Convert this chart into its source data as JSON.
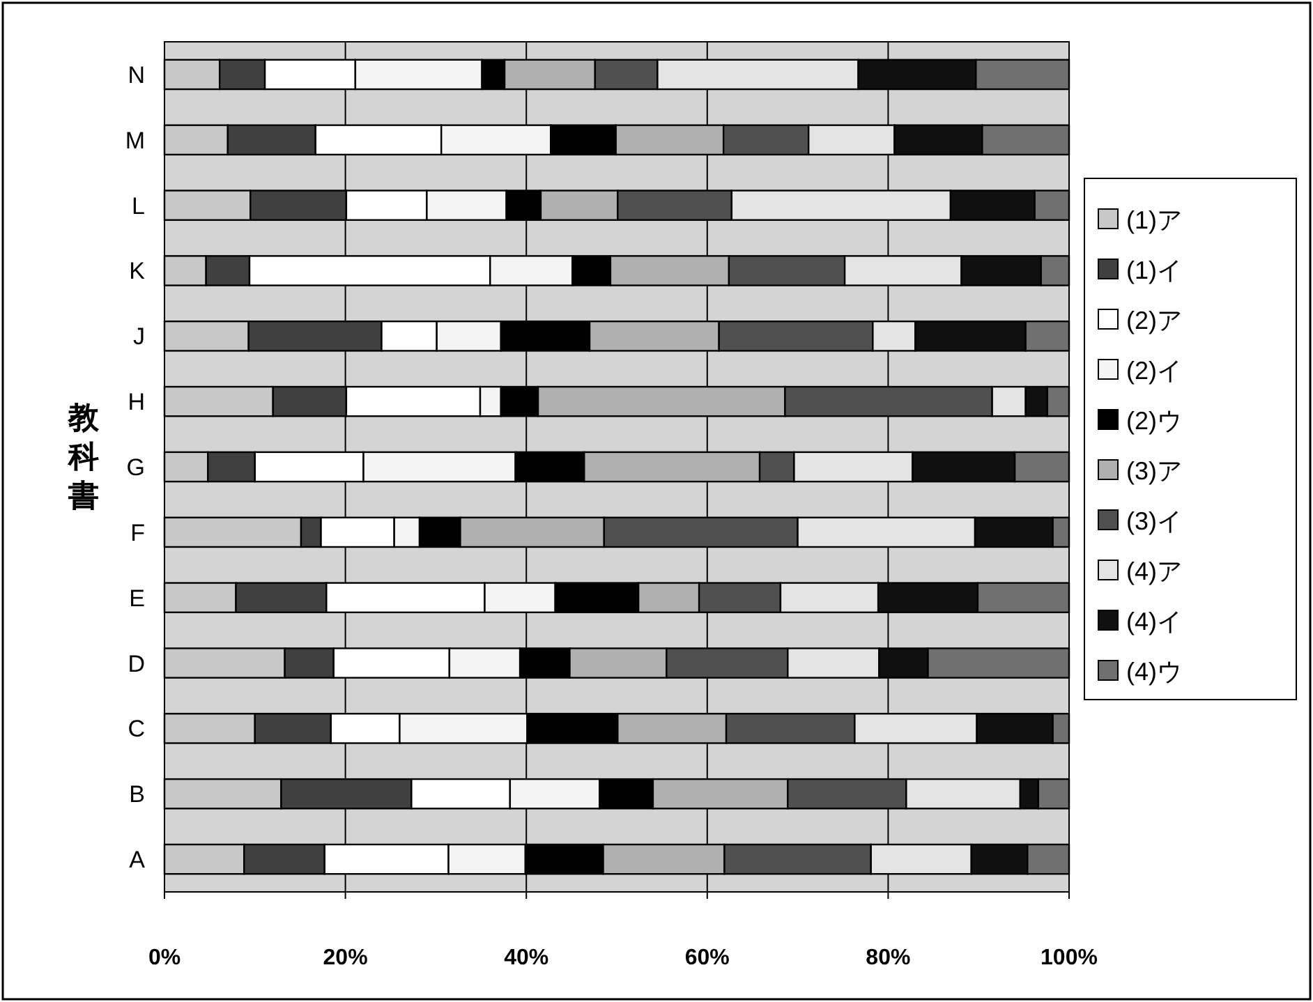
{
  "chart_data": {
    "type": "bar",
    "orientation": "horizontal",
    "stacked": true,
    "ylabel": "教科書",
    "categories": [
      "N",
      "M",
      "L",
      "K",
      "J",
      "H",
      "G",
      "F",
      "E",
      "D",
      "C",
      "B",
      "A"
    ],
    "xlim": [
      0,
      100
    ],
    "xticks": [
      {
        "value": 0,
        "label": "0%"
      },
      {
        "value": 20,
        "label": "20%"
      },
      {
        "value": 40,
        "label": "40%"
      },
      {
        "value": 60,
        "label": "60%"
      },
      {
        "value": 80,
        "label": "80%"
      },
      {
        "value": 100,
        "label": "100%"
      }
    ],
    "grid": "x",
    "legend": "right",
    "series": [
      {
        "name": "(1)ア",
        "color": "#c8c8c8",
        "values": [
          6.1,
          7.0,
          9.5,
          4.6,
          9.3,
          12.0,
          4.8,
          15.1,
          7.9,
          13.3,
          10.0,
          12.9,
          8.8
        ]
      },
      {
        "name": "(1)イ",
        "color": "#404040",
        "values": [
          5.0,
          9.7,
          10.6,
          4.8,
          14.7,
          8.1,
          5.2,
          2.2,
          10.0,
          5.4,
          8.4,
          14.4,
          8.9
        ]
      },
      {
        "name": "(2)ア",
        "color": "#ffffff",
        "values": [
          10.0,
          13.9,
          8.9,
          26.6,
          6.1,
          14.8,
          12.0,
          8.1,
          17.5,
          12.8,
          7.6,
          10.9,
          13.7
        ]
      },
      {
        "name": "(2)イ",
        "color": "#f4f4f4",
        "values": [
          14.0,
          12.1,
          8.8,
          9.1,
          7.1,
          2.3,
          16.8,
          2.8,
          7.8,
          7.8,
          14.1,
          9.9,
          8.5
        ]
      },
      {
        "name": "(2)ウ",
        "color": "#000000",
        "values": [
          2.5,
          7.2,
          3.8,
          4.2,
          9.8,
          4.1,
          7.6,
          4.5,
          9.2,
          5.5,
          10.0,
          5.9,
          8.6
        ]
      },
      {
        "name": "(3)ア",
        "color": "#b0b0b0",
        "values": [
          10.0,
          11.9,
          8.5,
          13.1,
          14.3,
          27.3,
          19.4,
          15.9,
          6.7,
          10.7,
          12.0,
          14.9,
          13.4
        ]
      },
      {
        "name": "(3)イ",
        "color": "#505050",
        "values": [
          6.9,
          9.4,
          12.6,
          12.8,
          17.0,
          22.9,
          3.8,
          21.4,
          9.0,
          13.4,
          14.2,
          13.1,
          16.2
        ]
      },
      {
        "name": "(4)ア",
        "color": "#e4e4e4",
        "values": [
          22.2,
          9.5,
          24.2,
          12.9,
          4.7,
          3.7,
          13.1,
          19.6,
          10.8,
          10.1,
          13.5,
          12.6,
          11.1
        ]
      },
      {
        "name": "(4)イ",
        "color": "#101010",
        "values": [
          13.0,
          9.7,
          9.3,
          8.8,
          12.2,
          2.4,
          11.3,
          8.6,
          11.0,
          5.4,
          8.4,
          2.0,
          6.2
        ]
      },
      {
        "name": "(4)ウ",
        "color": "#707070",
        "values": [
          10.3,
          9.6,
          3.8,
          3.1,
          4.8,
          2.4,
          6.0,
          1.8,
          10.1,
          15.6,
          1.8,
          3.4,
          4.6
        ]
      }
    ]
  }
}
